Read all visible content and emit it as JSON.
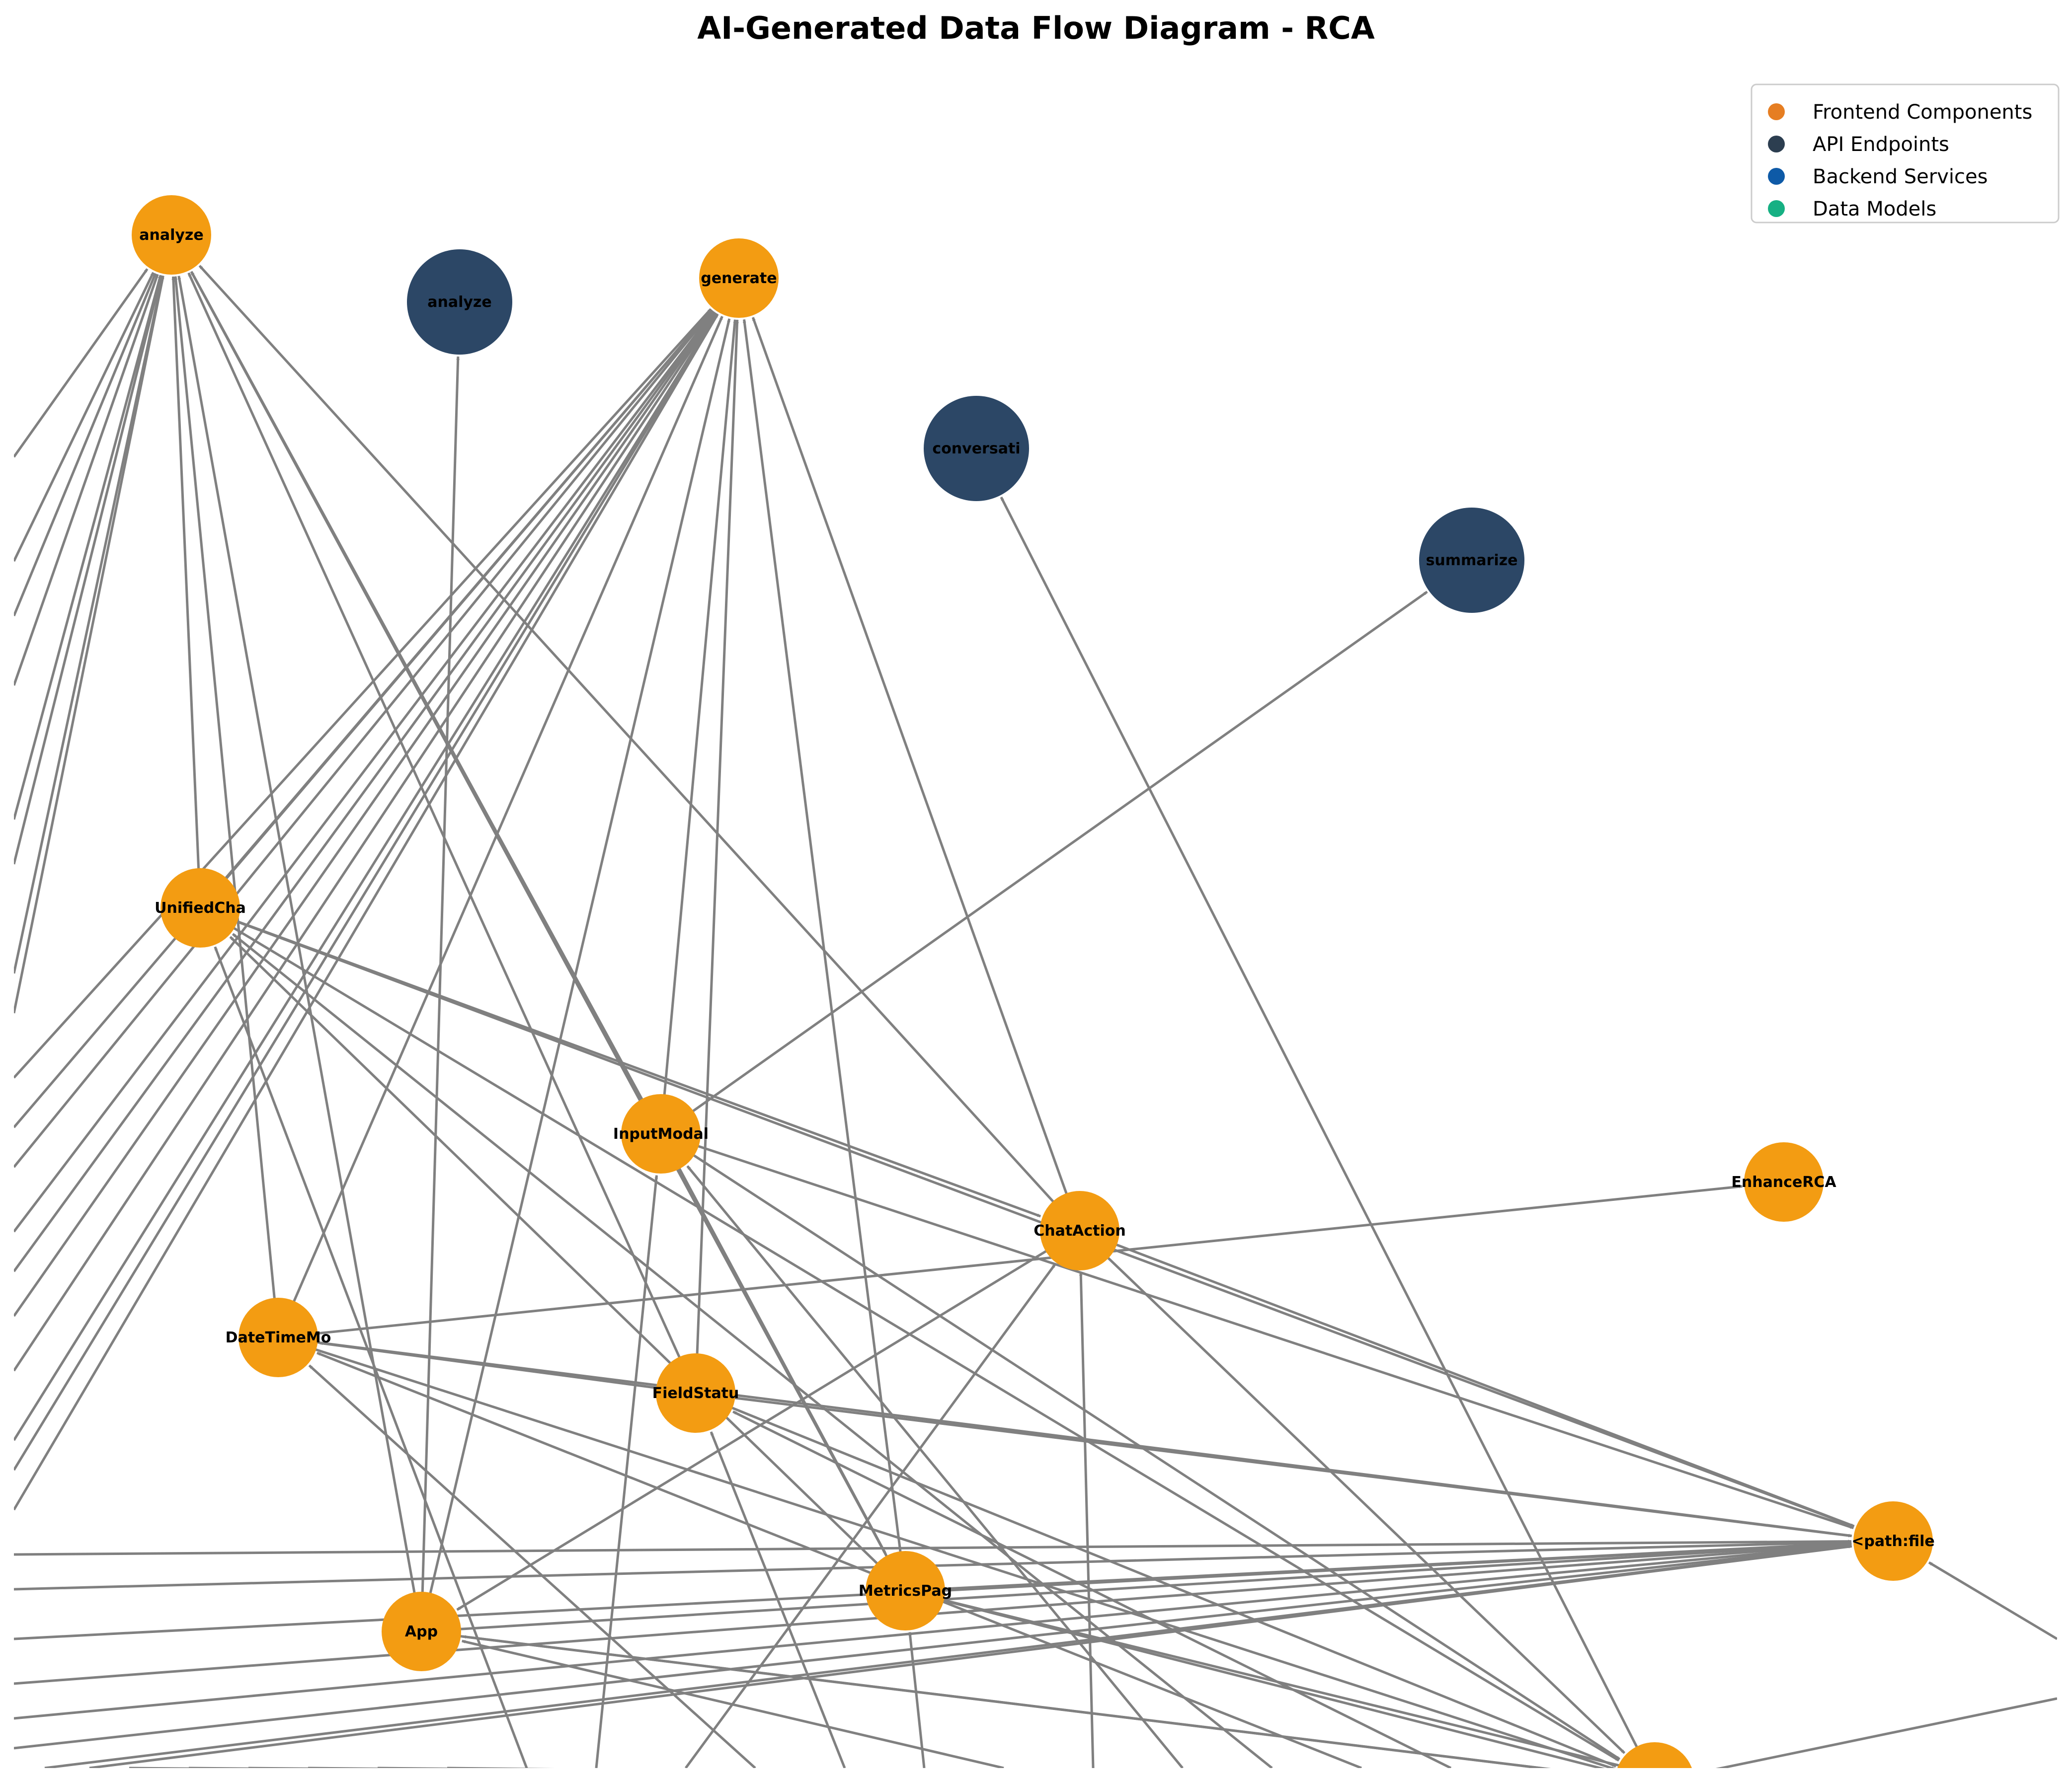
{
  "title": "AI-Generated Data Flow Diagram - RCA",
  "colors": {
    "frontend_node": "#F39C12",
    "api_node": "#2C4766",
    "edge": "#808080",
    "legend_frontend": "#E67E22",
    "legend_api": "#2C3E50",
    "legend_backend": "#0E5AA7",
    "legend_models": "#16B083"
  },
  "legend": [
    {
      "label": "Frontend Components",
      "color": "#E67E22"
    },
    {
      "label": "API Endpoints",
      "color": "#2C3E50"
    },
    {
      "label": "Backend Services",
      "color": "#0E5AA7"
    },
    {
      "label": "Data Models",
      "color": "#16B083"
    }
  ],
  "nodes": [
    {
      "id": "analyze_fe",
      "label": "analyze",
      "category": "frontend"
    },
    {
      "id": "analyze_api",
      "label": "analyze",
      "category": "api"
    },
    {
      "id": "generate",
      "label": "generate",
      "category": "frontend"
    },
    {
      "id": "conversati",
      "label": "conversati",
      "category": "api"
    },
    {
      "id": "summarize",
      "label": "summarize",
      "category": "api"
    },
    {
      "id": "unifiedcha",
      "label": "UnifiedCha",
      "category": "frontend"
    },
    {
      "id": "inputmodal",
      "label": "InputModal",
      "category": "frontend"
    },
    {
      "id": "chataction",
      "label": "ChatAction",
      "category": "frontend"
    },
    {
      "id": "enhancerca",
      "label": "EnhanceRCA",
      "category": "frontend"
    },
    {
      "id": "datetimemo",
      "label": "DateTimeMo",
      "category": "frontend"
    },
    {
      "id": "fieldstatu",
      "label": "FieldStatu",
      "category": "frontend"
    },
    {
      "id": "pathfile",
      "label": "<path:file",
      "category": "frontend"
    },
    {
      "id": "metricspag",
      "label": "MetricsPag",
      "category": "frontend"
    },
    {
      "id": "app",
      "label": "App",
      "category": "frontend"
    },
    {
      "id": "bottom_partial",
      "label": "",
      "category": "frontend"
    }
  ],
  "edges": [
    {
      "from": "unifiedcha",
      "to": "analyze_fe"
    },
    {
      "from": "unifiedcha",
      "to": "generate"
    },
    {
      "from": "unifiedcha",
      "to": "pathfile"
    },
    {
      "from": "unifiedcha",
      "to": "bottom_partial"
    },
    {
      "from": "inputmodal",
      "to": "analyze_fe"
    },
    {
      "from": "inputmodal",
      "to": "generate"
    },
    {
      "from": "inputmodal",
      "to": "summarize"
    },
    {
      "from": "inputmodal",
      "to": "pathfile"
    },
    {
      "from": "inputmodal",
      "to": "bottom_partial"
    },
    {
      "from": "chataction",
      "to": "analyze_fe"
    },
    {
      "from": "chataction",
      "to": "generate"
    },
    {
      "from": "chataction",
      "to": "pathfile"
    },
    {
      "from": "chataction",
      "to": "bottom_partial"
    },
    {
      "from": "datetimemo",
      "to": "analyze_fe"
    },
    {
      "from": "datetimemo",
      "to": "generate"
    },
    {
      "from": "datetimemo",
      "to": "pathfile"
    },
    {
      "from": "datetimemo",
      "to": "bottom_partial"
    },
    {
      "from": "fieldstatu",
      "to": "analyze_fe"
    },
    {
      "from": "fieldstatu",
      "to": "generate"
    },
    {
      "from": "fieldstatu",
      "to": "pathfile"
    },
    {
      "from": "fieldstatu",
      "to": "bottom_partial"
    },
    {
      "from": "metricspag",
      "to": "analyze_fe"
    },
    {
      "from": "metricspag",
      "to": "generate"
    },
    {
      "from": "metricspag",
      "to": "pathfile"
    },
    {
      "from": "metricspag",
      "to": "bottom_partial"
    },
    {
      "from": "app",
      "to": "analyze_fe"
    },
    {
      "from": "app",
      "to": "generate"
    },
    {
      "from": "app",
      "to": "pathfile"
    },
    {
      "from": "app",
      "to": "bottom_partial"
    },
    {
      "from": "app",
      "to": "analyze_api"
    },
    {
      "from": "bottom_partial",
      "to": "conversati"
    },
    {
      "from": "datetimemo",
      "to": "enhancerca"
    },
    {
      "from": "unifiedcha",
      "to": "chataction"
    },
    {
      "from": "inputmodal",
      "to": "metricspag"
    },
    {
      "from": "chataction",
      "to": "app"
    },
    {
      "from": "fieldstatu",
      "to": "datetimemo"
    },
    {
      "from": "metricspag",
      "to": "unifiedcha"
    }
  ],
  "offcanvas_sources": [
    {
      "to": "analyze_fe"
    },
    {
      "to": "analyze_fe"
    },
    {
      "to": "analyze_fe"
    },
    {
      "to": "analyze_fe"
    },
    {
      "to": "analyze_fe"
    },
    {
      "to": "analyze_fe"
    },
    {
      "to": "analyze_fe"
    },
    {
      "to": "analyze_fe"
    },
    {
      "to": "generate"
    },
    {
      "to": "generate"
    },
    {
      "to": "generate"
    },
    {
      "to": "generate"
    },
    {
      "to": "generate"
    },
    {
      "to": "generate"
    },
    {
      "to": "generate"
    },
    {
      "to": "generate"
    },
    {
      "to": "generate"
    },
    {
      "to": "generate"
    },
    {
      "to": "pathfile"
    },
    {
      "to": "pathfile"
    },
    {
      "to": "pathfile"
    },
    {
      "to": "pathfile"
    },
    {
      "to": "pathfile"
    },
    {
      "to": "pathfile"
    },
    {
      "to": "pathfile"
    },
    {
      "to": "pathfile"
    },
    {
      "to": "bottom_partial"
    },
    {
      "to": "bottom_partial"
    },
    {
      "to": "bottom_partial"
    },
    {
      "to": "bottom_partial"
    },
    {
      "to": "bottom_partial"
    },
    {
      "to": "bottom_partial"
    },
    {
      "to": "unifiedcha"
    },
    {
      "to": "inputmodal"
    },
    {
      "to": "chataction"
    },
    {
      "to": "datetimemo"
    },
    {
      "to": "fieldstatu"
    },
    {
      "to": "metricspag"
    },
    {
      "to": "app"
    },
    {
      "to": "chataction"
    },
    {
      "to": "inputmodal"
    },
    {
      "to": "unifiedcha"
    },
    {
      "to": "datetimemo"
    },
    {
      "to": "fieldstatu"
    },
    {
      "to": "app"
    },
    {
      "to": "metricspag"
    },
    {
      "to": "pathfile"
    },
    {
      "to": "bottom_partial"
    }
  ]
}
